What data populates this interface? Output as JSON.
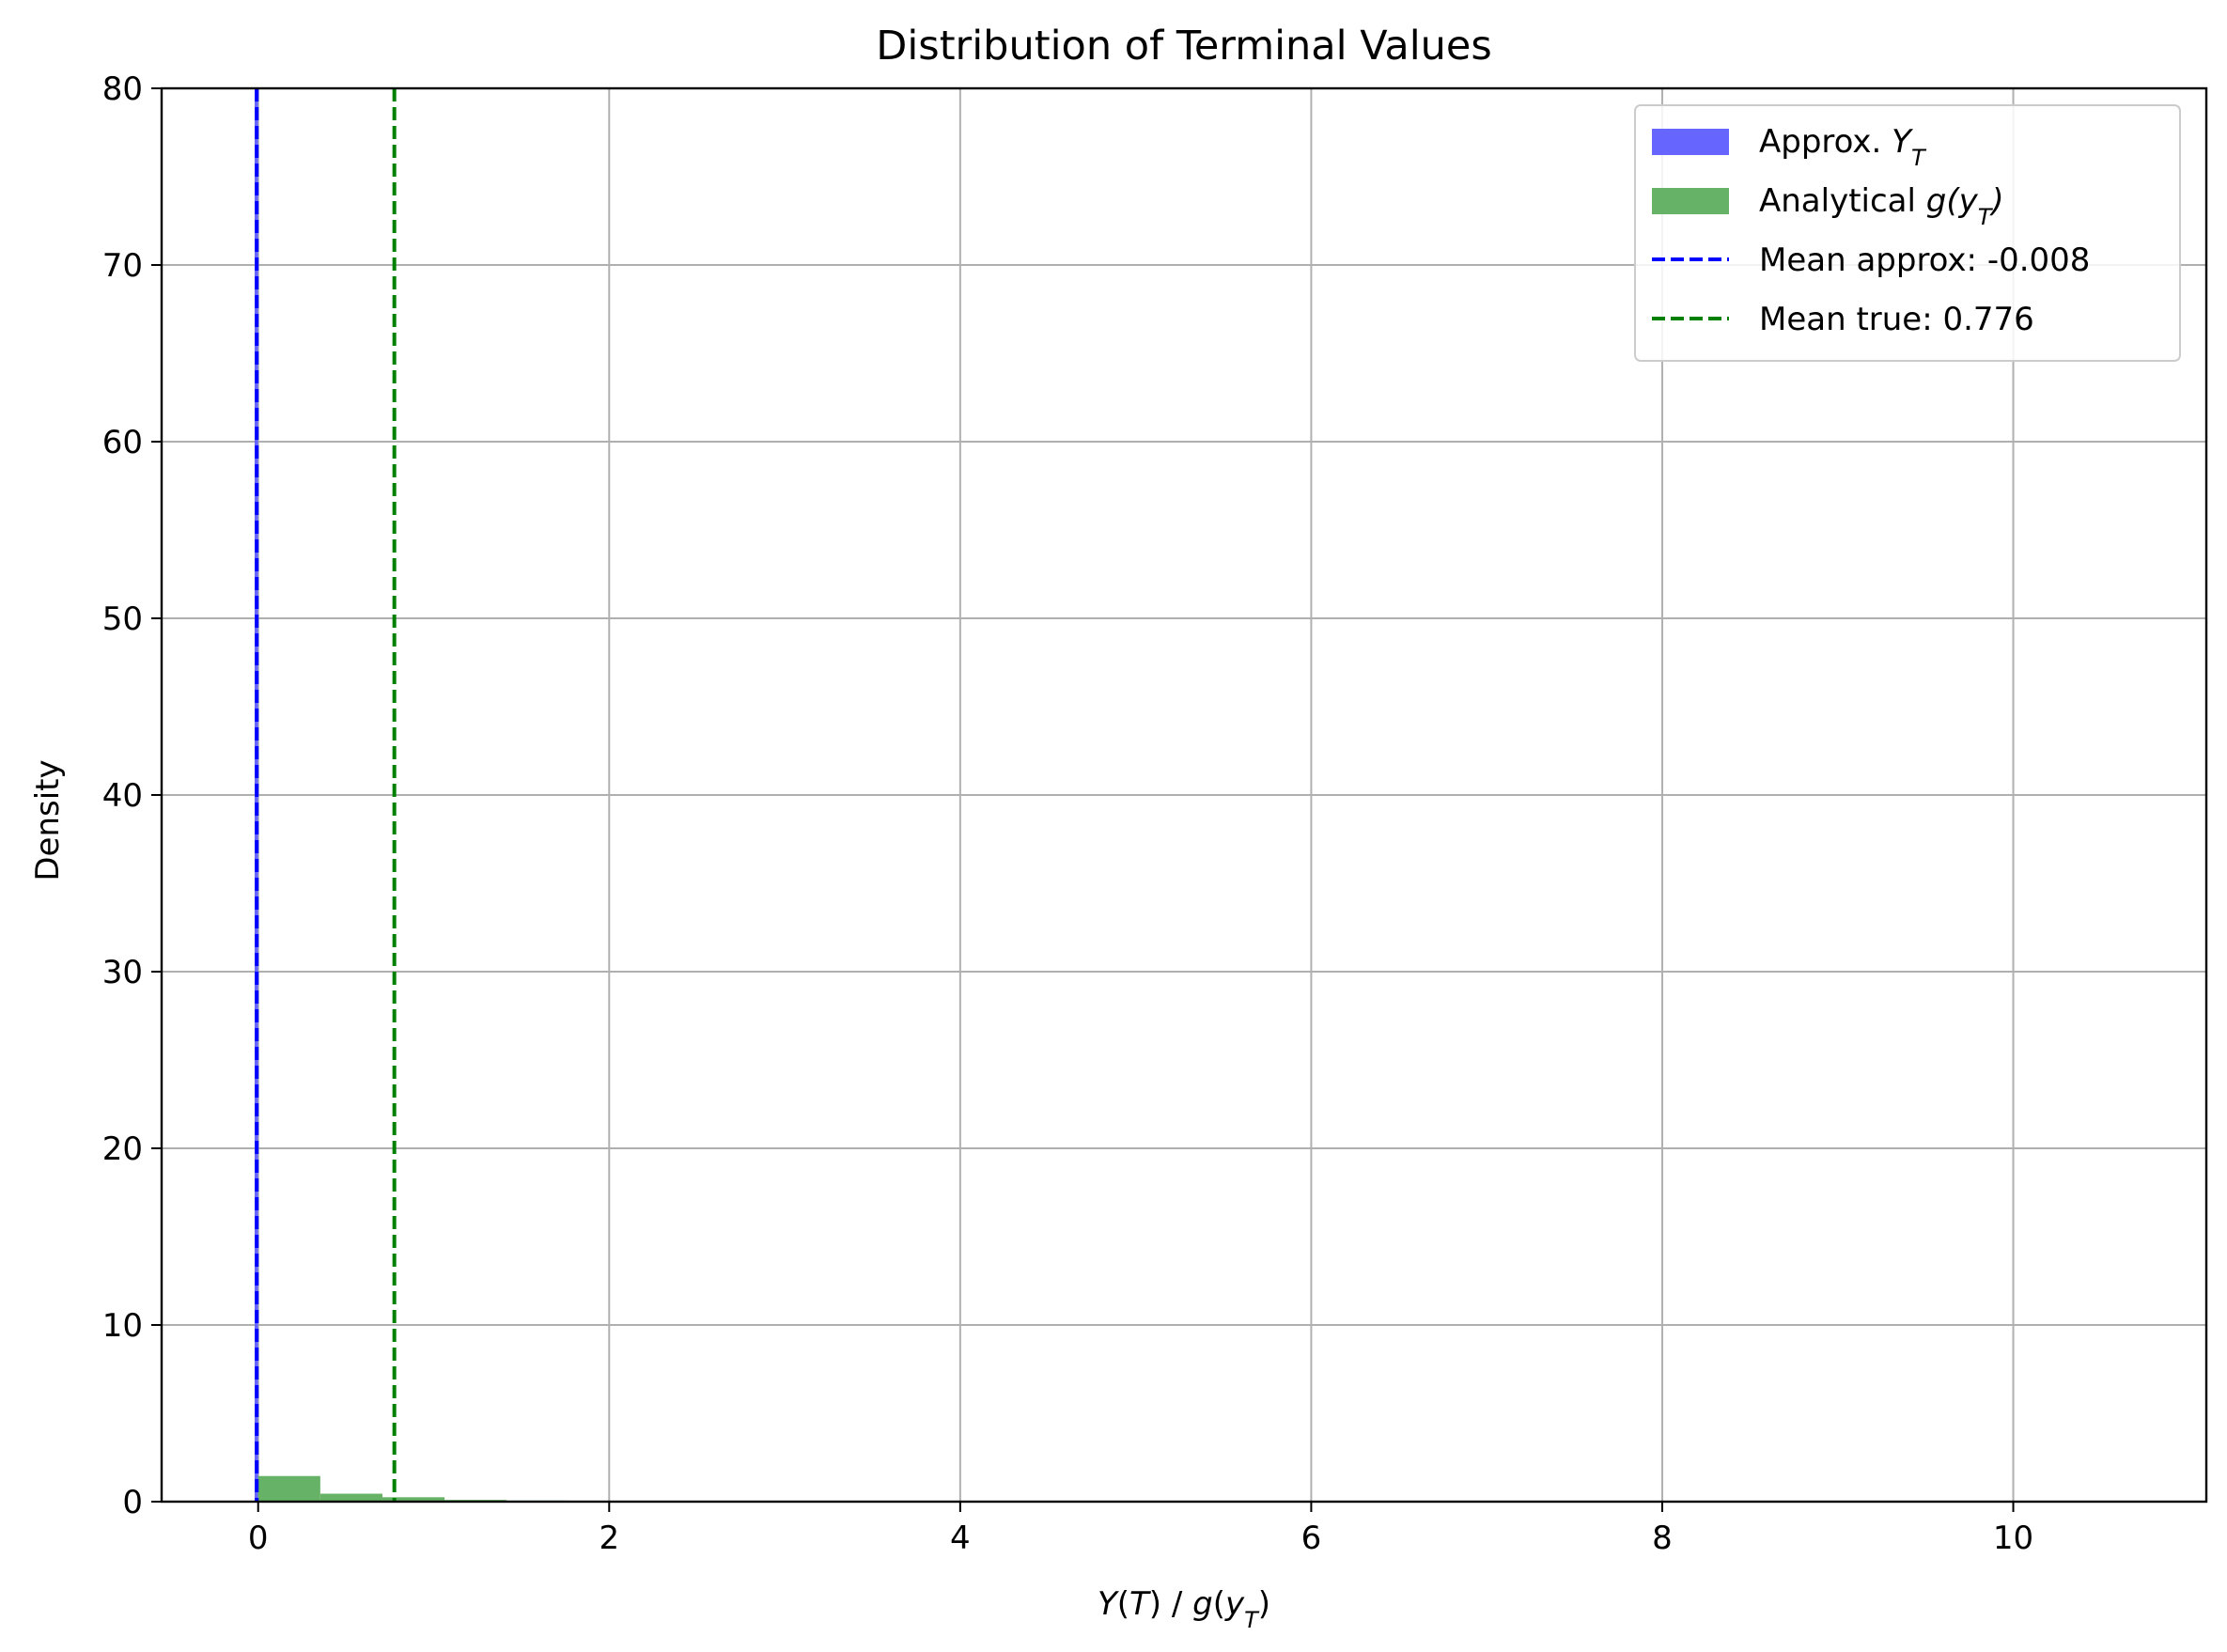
{
  "chart_data": {
    "type": "histogram",
    "title": "Distribution of Terminal Values",
    "xlabel": "Y(T) / g(y_T)",
    "ylabel": "Density",
    "xlim": [
      -0.55,
      11.1
    ],
    "ylim": [
      0,
      80
    ],
    "x_ticks": [
      0,
      2,
      4,
      6,
      8,
      10
    ],
    "y_ticks": [
      0,
      10,
      20,
      30,
      40,
      50,
      60,
      70,
      80
    ],
    "grid": true,
    "legend_position": "top-right",
    "legend": [
      {
        "label_main": "Approx. ",
        "label_math": "Y",
        "label_sub": "T",
        "label_tail": "",
        "kind": "patch",
        "color": "#6666ff"
      },
      {
        "label_main": "Analytical ",
        "label_math": "g(y",
        "label_sub": "T",
        "label_tail": ")",
        "kind": "patch",
        "color": "#66b266"
      },
      {
        "label_main": "Mean approx: -0.008",
        "label_math": "",
        "label_sub": "",
        "label_tail": "",
        "kind": "dashed",
        "color": "#0000ff"
      },
      {
        "label_main": "Mean true: 0.776",
        "label_math": "",
        "label_sub": "",
        "label_tail": "",
        "kind": "dashed",
        "color": "#008000"
      }
    ],
    "series": [
      {
        "name": "Approx. Y_T",
        "color": "#6666ff",
        "bins": [
          {
            "x0": -0.02,
            "x1": 0.0,
            "value": 80.0
          }
        ]
      },
      {
        "name": "Analytical g(y_T)",
        "color": "#66b266",
        "bins": [
          {
            "x0": 0.0,
            "x1": 0.354,
            "value": 1.45
          },
          {
            "x0": 0.354,
            "x1": 0.708,
            "value": 0.45
          },
          {
            "x0": 0.708,
            "x1": 1.062,
            "value": 0.25
          },
          {
            "x0": 1.062,
            "x1": 1.416,
            "value": 0.1
          },
          {
            "x0": 1.416,
            "x1": 1.77,
            "value": 0.06
          },
          {
            "x0": 1.77,
            "x1": 2.124,
            "value": 0.03
          }
        ]
      }
    ],
    "vlines": [
      {
        "name": "Mean approx: -0.008",
        "x": -0.008,
        "color": "#0000ff",
        "style": "dashed"
      },
      {
        "name": "Mean true: 0.776",
        "x": 0.776,
        "color": "#008000",
        "style": "dashed"
      }
    ]
  }
}
